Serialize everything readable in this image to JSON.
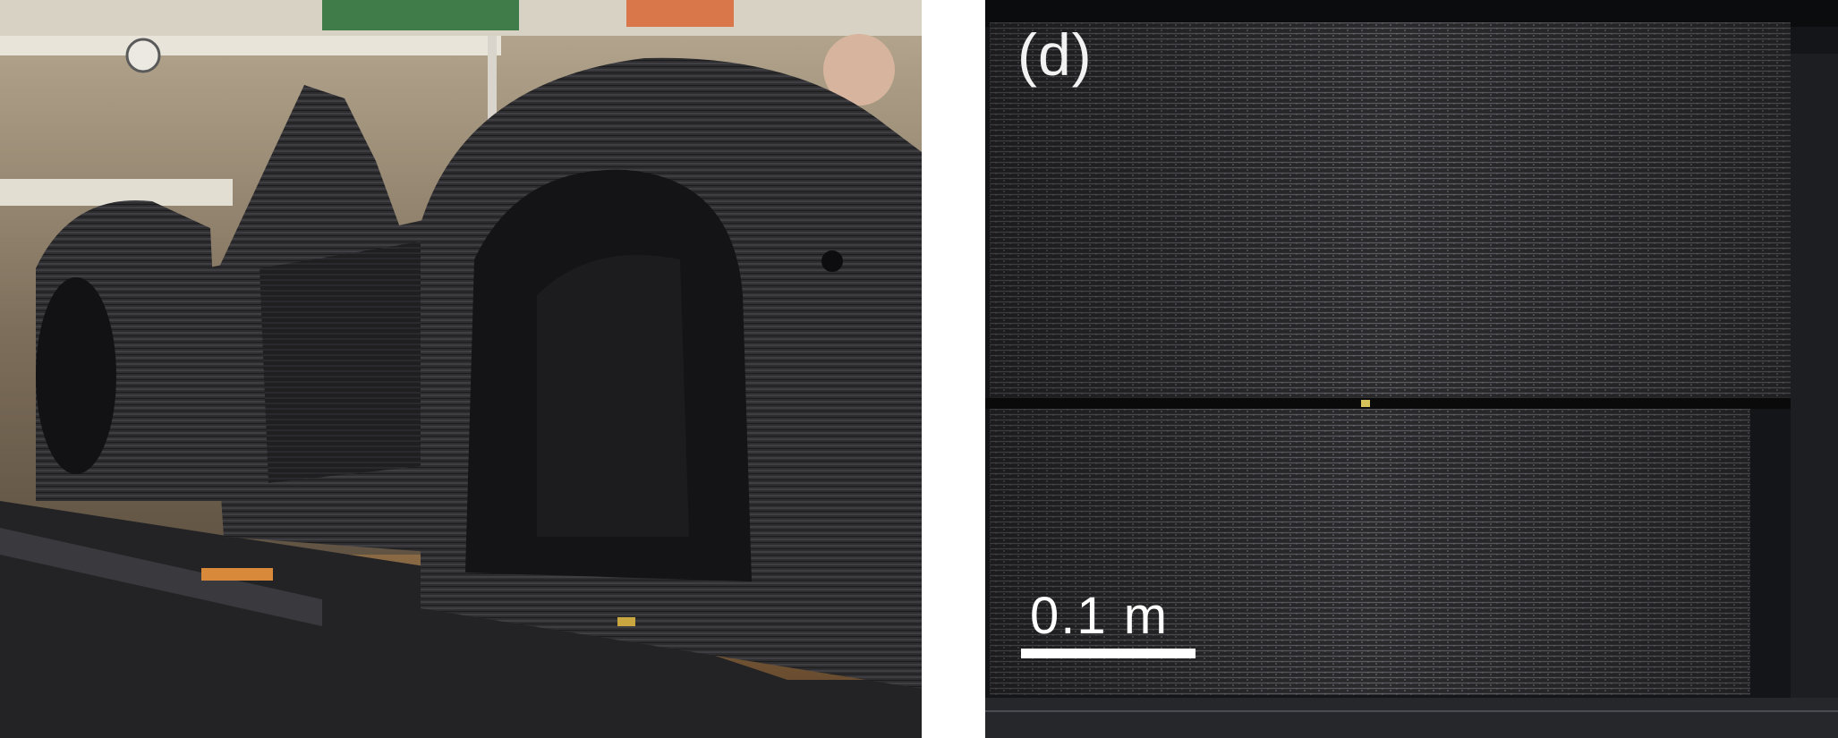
{
  "figure": {
    "panels": [
      {
        "id": "c",
        "label": "",
        "subject": "large-3d-printed-car-body"
      },
      {
        "id": "d",
        "label": "(d)",
        "subject": "printed-layered-block-closeup"
      }
    ],
    "scale_bar": {
      "label": "0.1 m"
    },
    "colors": {
      "printed_material": "#2b2b2e",
      "background_warm": "#8a7a63",
      "scale_bar": "#ffffff"
    }
  }
}
